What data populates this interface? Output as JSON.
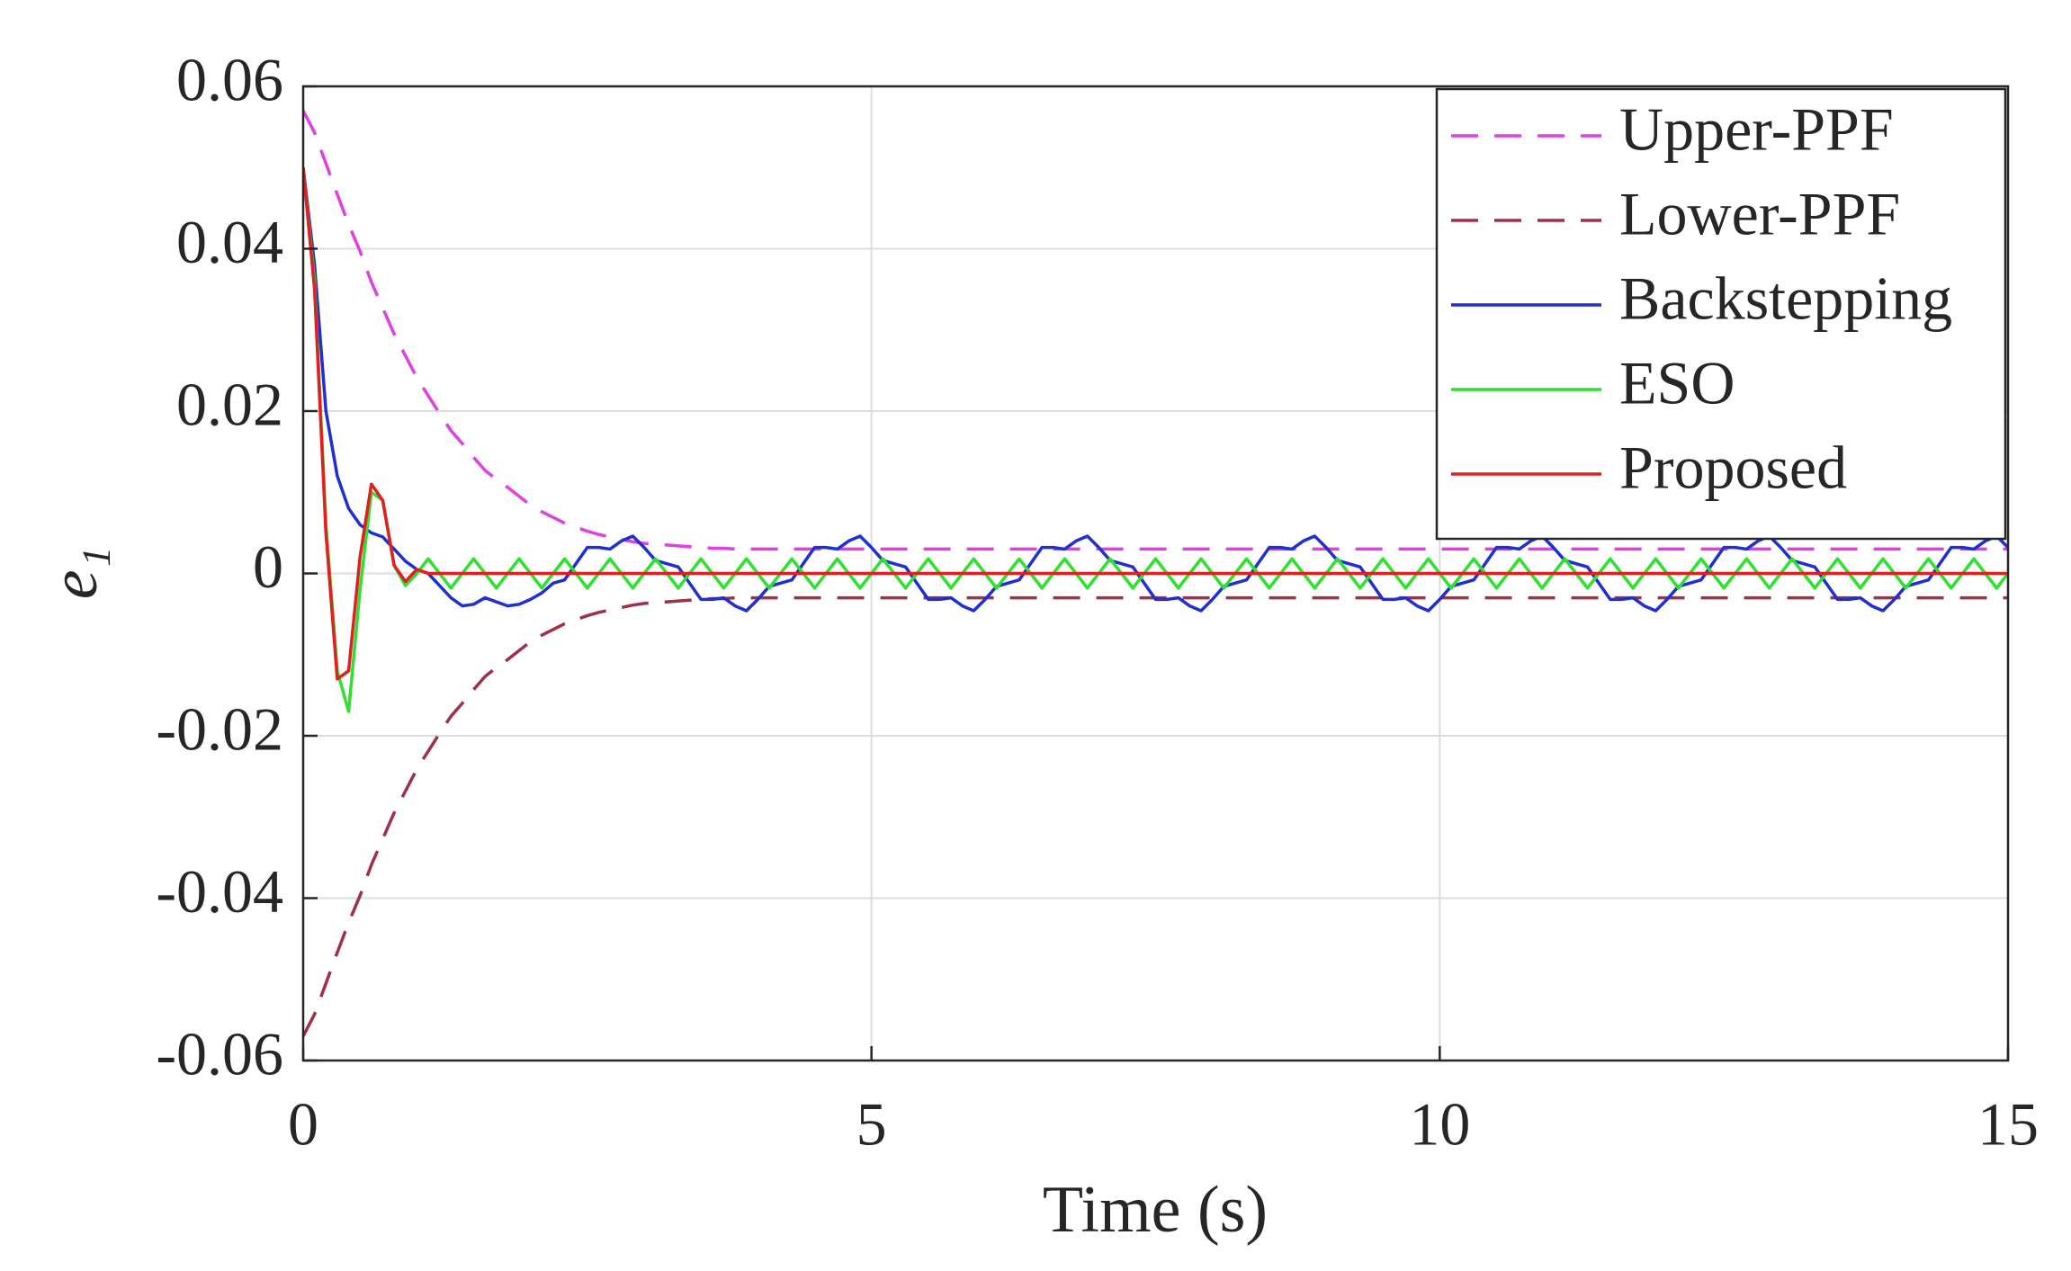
{
  "chart_data": {
    "type": "line",
    "xlabel": "Time (s)",
    "ylabel": "e₁",
    "xlim": [
      0,
      15
    ],
    "ylim": [
      -0.06,
      0.06
    ],
    "xticks": [
      0,
      5,
      10,
      15
    ],
    "yticks": [
      -0.06,
      -0.04,
      -0.02,
      0,
      0.02,
      0.04,
      0.06
    ],
    "grid": true,
    "legend": "upper right",
    "x": [
      0,
      0.1,
      0.2,
      0.3,
      0.4,
      0.5,
      0.6,
      0.7,
      0.8,
      0.9,
      1,
      1.1,
      1.2,
      1.3,
      1.4,
      1.5,
      1.6,
      1.7,
      1.8,
      1.9,
      2,
      2.1,
      2.2,
      2.3,
      2.4,
      2.5,
      2.6,
      2.7,
      2.8,
      2.9,
      3,
      3.1,
      3.2,
      3.3,
      3.4,
      3.5,
      3.6,
      3.7,
      3.8,
      3.9,
      4,
      4.1,
      4.2,
      4.3,
      4.4,
      4.5,
      4.6,
      4.7,
      4.8,
      4.9,
      5,
      5.1,
      5.2,
      5.3,
      5.4,
      5.5,
      5.6,
      5.7,
      5.8,
      5.9,
      6,
      6.1,
      6.2,
      6.3,
      6.4,
      6.5,
      6.6,
      6.7,
      6.8,
      6.9,
      7,
      7.1,
      7.2,
      7.3,
      7.4,
      7.5,
      7.6,
      7.7,
      7.8,
      7.9,
      8,
      8.1,
      8.2,
      8.3,
      8.4,
      8.5,
      8.6,
      8.7,
      8.8,
      8.9,
      9,
      9.1,
      9.2,
      9.3,
      9.4,
      9.5,
      9.6,
      9.7,
      9.8,
      9.9,
      10,
      10.1,
      10.2,
      10.3,
      10.4,
      10.5,
      10.6,
      10.7,
      10.8,
      10.9,
      11,
      11.1,
      11.2,
      11.3,
      11.4,
      11.5,
      11.6,
      11.7,
      11.8,
      11.9,
      12,
      12.1,
      12.2,
      12.3,
      12.4,
      12.5,
      12.6,
      12.7,
      12.8,
      12.9,
      13,
      13.1,
      13.2,
      13.3,
      13.4,
      13.5,
      13.6,
      13.7,
      13.8,
      13.9,
      14,
      14.1,
      14.2,
      14.3,
      14.4,
      14.5,
      14.6,
      14.7,
      14.8,
      14.9,
      15
    ],
    "series": [
      {
        "name": "Upper-PPF",
        "color": "#e040e0",
        "linestyle": "dashed",
        "values": [
          0.057,
          0.0543,
          0.0505,
          0.0467,
          0.043,
          0.0397,
          0.0359,
          0.0327,
          0.0295,
          0.0268,
          0.0241,
          0.0219,
          0.0197,
          0.0176,
          0.016,
          0.0143,
          0.0127,
          0.0116,
          0.0106,
          0.0095,
          0.0084,
          0.0076,
          0.0069,
          0.0062,
          0.0057,
          0.0052,
          0.0048,
          0.0045,
          0.0042,
          0.0039,
          0.0037,
          0.0036,
          0.0035,
          0.0034,
          0.0033,
          0.0032,
          0.0031,
          0.0031,
          0.003,
          0.003,
          0.003,
          0.003,
          0.003,
          0.003,
          0.003,
          0.003,
          0.003,
          0.003,
          0.003,
          0.003,
          0.003,
          0.003,
          0.003,
          0.003,
          0.003,
          0.003,
          0.003,
          0.003,
          0.003,
          0.003,
          0.003,
          0.003,
          0.003,
          0.003,
          0.003,
          0.003,
          0.003,
          0.003,
          0.003,
          0.003,
          0.003,
          0.003,
          0.003,
          0.003,
          0.003,
          0.003,
          0.003,
          0.003,
          0.003,
          0.003,
          0.003,
          0.003,
          0.003,
          0.003,
          0.003,
          0.003,
          0.003,
          0.003,
          0.003,
          0.003,
          0.003,
          0.003,
          0.003,
          0.003,
          0.003,
          0.003,
          0.003,
          0.003,
          0.003,
          0.003,
          0.003,
          0.003,
          0.003,
          0.003,
          0.003,
          0.003,
          0.003,
          0.003,
          0.003,
          0.003,
          0.003,
          0.003,
          0.003,
          0.003,
          0.003,
          0.003,
          0.003,
          0.003,
          0.003,
          0.003,
          0.003,
          0.003,
          0.003,
          0.003,
          0.003,
          0.003,
          0.003,
          0.003,
          0.003,
          0.003,
          0.003,
          0.003,
          0.003,
          0.003,
          0.003,
          0.003,
          0.003,
          0.003,
          0.003,
          0.003,
          0.003,
          0.003,
          0.003,
          0.003,
          0.003,
          0.003,
          0.003,
          0.003,
          0.003,
          0.003,
          0.003
        ]
      },
      {
        "name": "Lower-PPF",
        "color": "#a0304a",
        "linestyle": "dashed",
        "values": [
          -0.057,
          -0.0543,
          -0.0505,
          -0.0467,
          -0.043,
          -0.0397,
          -0.0359,
          -0.0327,
          -0.0295,
          -0.0268,
          -0.0241,
          -0.0219,
          -0.0197,
          -0.0176,
          -0.016,
          -0.0143,
          -0.0127,
          -0.0116,
          -0.0106,
          -0.0095,
          -0.0084,
          -0.0076,
          -0.0069,
          -0.0062,
          -0.0057,
          -0.0052,
          -0.0048,
          -0.0045,
          -0.0042,
          -0.0039,
          -0.0037,
          -0.0036,
          -0.0035,
          -0.0034,
          -0.0033,
          -0.0032,
          -0.0031,
          -0.0031,
          -0.003,
          -0.003,
          -0.003,
          -0.003,
          -0.003,
          -0.003,
          -0.003,
          -0.003,
          -0.003,
          -0.003,
          -0.003,
          -0.003,
          -0.003,
          -0.003,
          -0.003,
          -0.003,
          -0.003,
          -0.003,
          -0.003,
          -0.003,
          -0.003,
          -0.003,
          -0.003,
          -0.003,
          -0.003,
          -0.003,
          -0.003,
          -0.003,
          -0.003,
          -0.003,
          -0.003,
          -0.003,
          -0.003,
          -0.003,
          -0.003,
          -0.003,
          -0.003,
          -0.003,
          -0.003,
          -0.003,
          -0.003,
          -0.003,
          -0.003,
          -0.003,
          -0.003,
          -0.003,
          -0.003,
          -0.003,
          -0.003,
          -0.003,
          -0.003,
          -0.003,
          -0.003,
          -0.003,
          -0.003,
          -0.003,
          -0.003,
          -0.003,
          -0.003,
          -0.003,
          -0.003,
          -0.003,
          -0.003,
          -0.003,
          -0.003,
          -0.003,
          -0.003,
          -0.003,
          -0.003,
          -0.003,
          -0.003,
          -0.003,
          -0.003,
          -0.003,
          -0.003,
          -0.003,
          -0.003,
          -0.003,
          -0.003,
          -0.003,
          -0.003,
          -0.003,
          -0.003,
          -0.003,
          -0.003,
          -0.003,
          -0.003,
          -0.003,
          -0.003,
          -0.003,
          -0.003,
          -0.003,
          -0.003,
          -0.003,
          -0.003,
          -0.003,
          -0.003,
          -0.003,
          -0.003,
          -0.003,
          -0.003,
          -0.003,
          -0.003,
          -0.003,
          -0.003,
          -0.003,
          -0.003,
          -0.003,
          -0.003,
          -0.003,
          -0.003,
          -0.003,
          -0.003
        ]
      },
      {
        "name": "Backstepping",
        "color": "#1f2fd0",
        "linestyle": "solid",
        "values": [
          0.05,
          0.038,
          0.02,
          0.012,
          0.008,
          0.006,
          0.005,
          0.0045,
          0.003,
          0.0015,
          0.0005,
          0,
          -0.0015,
          -0.003,
          -0.004,
          -0.0038,
          -0.003,
          -0.0035,
          -0.004,
          -0.0038,
          -0.0032,
          -0.0024,
          -0.0012,
          -0.0008,
          0.0012,
          0.0032,
          0.0032,
          0.003,
          0.004,
          0.0046,
          0.0032,
          0.0016,
          0.0012,
          0.0008,
          -0.0012,
          -0.0032,
          -0.0032,
          -0.003,
          -0.004,
          -0.0046,
          -0.0032,
          -0.0016,
          -0.0012,
          -0.0008,
          0.0012,
          0.0032,
          0.0032,
          0.003,
          0.004,
          0.0046,
          0.0032,
          0.0016,
          0.0012,
          0.0008,
          -0.0012,
          -0.0032,
          -0.0032,
          -0.003,
          -0.004,
          -0.0046,
          -0.0032,
          -0.0016,
          -0.0012,
          -0.0008,
          0.0012,
          0.0032,
          0.0032,
          0.003,
          0.004,
          0.0046,
          0.0032,
          0.0016,
          0.0012,
          0.0008,
          -0.0012,
          -0.0032,
          -0.0032,
          -0.003,
          -0.004,
          -0.0046,
          -0.0032,
          -0.0016,
          -0.0012,
          -0.0008,
          0.0012,
          0.0032,
          0.0032,
          0.003,
          0.004,
          0.0046,
          0.0032,
          0.0016,
          0.0012,
          0.0008,
          -0.0012,
          -0.0032,
          -0.0032,
          -0.003,
          -0.004,
          -0.0046,
          -0.0032,
          -0.0016,
          -0.0012,
          -0.0008,
          0.0012,
          0.0032,
          0.0032,
          0.003,
          0.004,
          0.0046,
          0.0032,
          0.0016,
          0.0012,
          0.0008,
          -0.0012,
          -0.0032,
          -0.0032,
          -0.003,
          -0.004,
          -0.0046,
          -0.0032,
          -0.0016,
          -0.0012,
          -0.0008,
          0.0012,
          0.0032,
          0.0032,
          0.003,
          0.004,
          0.0046,
          0.0032,
          0.0016,
          0.0012,
          0.0008,
          -0.0012,
          -0.0032,
          -0.0032,
          -0.003,
          -0.004,
          -0.0046,
          -0.0032,
          -0.0016,
          -0.0012,
          -0.0008,
          0.0012,
          0.0032,
          0.0032,
          0.003,
          0.004,
          0.0046,
          0.0032
        ]
      },
      {
        "name": "ESO",
        "color": "#30e030",
        "linestyle": "solid",
        "values": [
          0.05,
          0.036,
          0.006,
          -0.012,
          -0.017,
          -0.002,
          0.01,
          0.009,
          0.001,
          -0.0015,
          0,
          0.0018,
          0,
          -0.0018,
          0,
          0.0018,
          0,
          -0.0018,
          0,
          0.0018,
          0,
          -0.0018,
          0,
          0.0018,
          0,
          -0.0018,
          0,
          0.0018,
          0,
          -0.0018,
          0,
          0.0018,
          0,
          -0.0018,
          0,
          0.0018,
          0,
          -0.0018,
          0,
          0.0018,
          0,
          -0.0018,
          0,
          0.0018,
          0,
          -0.0018,
          0,
          0.0018,
          0,
          -0.0018,
          0,
          0.0018,
          0,
          -0.0018,
          0,
          0.0018,
          0,
          -0.0018,
          0,
          0.0018,
          0,
          -0.0018,
          0,
          0.0018,
          0,
          -0.0018,
          0,
          0.0018,
          0,
          -0.0018,
          0,
          0.0018,
          0,
          -0.0018,
          0,
          0.0018,
          0,
          -0.0018,
          0,
          0.0018,
          0,
          -0.0018,
          0,
          0.0018,
          0,
          -0.0018,
          0,
          0.0018,
          0,
          -0.0018,
          0,
          0.0018,
          0,
          -0.0018,
          0,
          0.0018,
          0,
          -0.0018,
          0,
          0.0018,
          0,
          -0.0018,
          0,
          0.0018,
          0,
          -0.0018,
          0,
          0.0018,
          0,
          -0.0018,
          0,
          0.0018,
          0,
          -0.0018,
          0,
          0.0018,
          0,
          -0.0018,
          0,
          0.0018,
          0,
          -0.0018,
          0,
          0.0018,
          0,
          -0.0018,
          0,
          0.0018,
          0,
          -0.0018,
          0,
          0.0018,
          0,
          -0.0018,
          0,
          0.0018,
          0,
          -0.0018,
          0,
          0.0018,
          0,
          -0.0018,
          0,
          0.0018,
          0,
          -0.0018,
          0,
          0.0018,
          0,
          -0.0018,
          0
        ]
      },
      {
        "name": "Proposed",
        "color": "#e02020",
        "linestyle": "solid",
        "values": [
          0.05,
          0.035,
          0.005,
          -0.013,
          -0.012,
          0.002,
          0.011,
          0.009,
          0.001,
          -0.001,
          0.0005,
          0,
          0,
          0,
          0,
          0,
          0,
          0,
          0,
          0,
          0,
          0,
          0,
          0,
          0,
          0,
          0,
          0,
          0,
          0,
          0,
          0,
          0,
          0,
          0,
          0,
          0,
          0,
          0,
          0,
          0,
          0,
          0,
          0,
          0,
          0,
          0,
          0,
          0,
          0,
          0,
          0,
          0,
          0,
          0,
          0,
          0,
          0,
          0,
          0,
          0,
          0,
          0,
          0,
          0,
          0,
          0,
          0,
          0,
          0,
          0,
          0,
          0,
          0,
          0,
          0,
          0,
          0,
          0,
          0,
          0,
          0,
          0,
          0,
          0,
          0,
          0,
          0,
          0,
          0,
          0,
          0,
          0,
          0,
          0,
          0,
          0,
          0,
          0,
          0,
          0,
          0,
          0,
          0,
          0,
          0,
          0,
          0,
          0,
          0,
          0,
          0,
          0,
          0,
          0,
          0,
          0,
          0,
          0,
          0,
          0,
          0,
          0,
          0,
          0,
          0,
          0,
          0,
          0,
          0,
          0,
          0,
          0,
          0,
          0,
          0,
          0,
          0,
          0,
          0,
          0,
          0,
          0,
          0,
          0,
          0,
          0,
          0,
          0,
          0,
          0
        ]
      }
    ]
  }
}
